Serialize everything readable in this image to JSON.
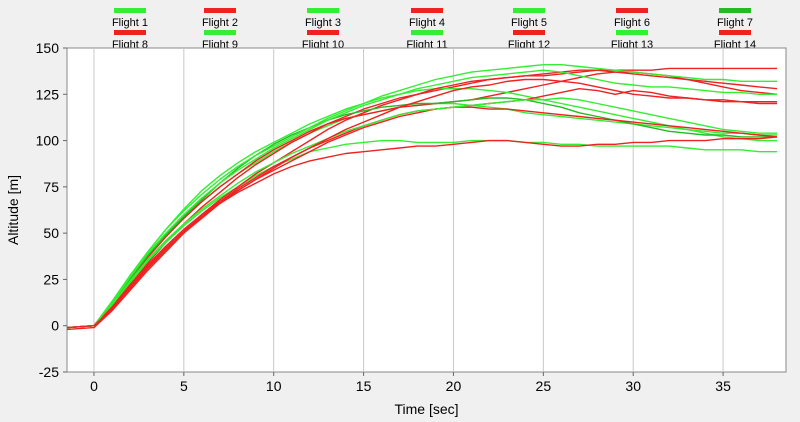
{
  "chart_data": {
    "type": "line",
    "xlabel": "Time [sec]",
    "ylabel": "Altitude [m]",
    "xlim": [
      -1.5,
      38.5
    ],
    "ylim": [
      -25,
      150
    ],
    "x_ticks": [
      0,
      5,
      10,
      15,
      20,
      25,
      30,
      35
    ],
    "x_tick_labels": [
      "0",
      "5",
      "10",
      "15",
      "20",
      "25",
      "30",
      "35"
    ],
    "y_ticks": [
      -25,
      0,
      25,
      50,
      75,
      100,
      125,
      150
    ],
    "y_tick_labels": [
      "-25",
      "0",
      "25",
      "50",
      "75",
      "100",
      "125",
      "150"
    ],
    "grid": "vertical",
    "legend_position": "top",
    "x": [
      -1.5,
      0,
      1,
      2,
      3,
      4,
      5,
      6,
      7,
      8,
      9,
      10,
      11,
      12,
      13,
      14,
      15,
      16,
      17,
      18,
      19,
      20,
      21,
      22,
      23,
      24,
      25,
      26,
      27,
      28,
      29,
      30,
      31,
      32,
      33,
      34,
      35,
      36,
      37,
      38
    ],
    "series": [
      {
        "name": "Flight 1",
        "color": "#33ee33",
        "values": [
          -1,
          0,
          12,
          26,
          38,
          48,
          58,
          67,
          75,
          82,
          88,
          94,
          99,
          104,
          108,
          112,
          114,
          116,
          118,
          119,
          120,
          120,
          119,
          118,
          117,
          115,
          114,
          113,
          112,
          111,
          110,
          109,
          108,
          107,
          106,
          105,
          104,
          104,
          103,
          103
        ]
      },
      {
        "name": "Flight 2",
        "color": "#ee2222",
        "values": [
          -1,
          0,
          10,
          22,
          34,
          45,
          55,
          64,
          72,
          80,
          87,
          93,
          99,
          104,
          109,
          113,
          117,
          120,
          123,
          125,
          127,
          129,
          131,
          133,
          134,
          135,
          135,
          136,
          137,
          138,
          138,
          138,
          138,
          139,
          139,
          139,
          139,
          139,
          139,
          139
        ]
      },
      {
        "name": "Flight 3",
        "color": "#33ee33",
        "values": [
          -1,
          0,
          11,
          23,
          35,
          45,
          54,
          62,
          69,
          75,
          81,
          86,
          90,
          94,
          96,
          98,
          99,
          100,
          100,
          99,
          99,
          99,
          100,
          100,
          100,
          99,
          99,
          98,
          98,
          97,
          97,
          97,
          97,
          97,
          96,
          95,
          95,
          95,
          94,
          94
        ]
      },
      {
        "name": "Flight 4",
        "color": "#ee2222",
        "values": [
          -1,
          0,
          11,
          24,
          37,
          48,
          58,
          67,
          75,
          82,
          89,
          95,
          100,
          105,
          109,
          112,
          114,
          116,
          118,
          119,
          120,
          121,
          122,
          124,
          126,
          128,
          130,
          132,
          134,
          136,
          137,
          137,
          136,
          135,
          133,
          131,
          129,
          127,
          126,
          125
        ]
      },
      {
        "name": "Flight 5",
        "color": "#33ee33",
        "values": [
          -1,
          0,
          13,
          27,
          40,
          52,
          63,
          73,
          81,
          88,
          94,
          99,
          104,
          109,
          113,
          117,
          120,
          123,
          125,
          127,
          128,
          128,
          128,
          127,
          126,
          124,
          122,
          120,
          118,
          116,
          114,
          112,
          110,
          108,
          106,
          104,
          102,
          101,
          100,
          100
        ]
      },
      {
        "name": "Flight 6",
        "color": "#ee2222",
        "values": [
          -1,
          0,
          9,
          21,
          32,
          42,
          51,
          60,
          68,
          75,
          82,
          88,
          94,
          100,
          106,
          111,
          115,
          119,
          122,
          125,
          128,
          130,
          132,
          133,
          134,
          135,
          136,
          137,
          138,
          138,
          137,
          136,
          135,
          134,
          133,
          132,
          131,
          130,
          129,
          128
        ]
      },
      {
        "name": "Flight 7",
        "color": "#22bb22",
        "values": [
          -1,
          0,
          12,
          25,
          38,
          49,
          59,
          68,
          77,
          85,
          92,
          98,
          103,
          107,
          111,
          114,
          116,
          118,
          119,
          120,
          120,
          121,
          122,
          123,
          123,
          122,
          120,
          118,
          115,
          113,
          111,
          109,
          107,
          105,
          104,
          103,
          103,
          102,
          102,
          102
        ]
      },
      {
        "name": "Flight 8",
        "color": "#ee2222",
        "values": [
          -2,
          -1,
          8,
          19,
          30,
          40,
          50,
          59,
          67,
          74,
          80,
          86,
          91,
          96,
          100,
          104,
          108,
          111,
          114,
          116,
          117,
          118,
          118,
          117,
          117,
          116,
          115,
          114,
          113,
          112,
          111,
          110,
          109,
          108,
          107,
          106,
          105,
          104,
          103,
          102
        ]
      },
      {
        "name": "Flight 9",
        "color": "#33ee33",
        "values": [
          -1,
          0,
          13,
          27,
          40,
          52,
          62,
          71,
          79,
          86,
          92,
          97,
          102,
          107,
          112,
          116,
          120,
          124,
          127,
          130,
          133,
          135,
          137,
          138,
          139,
          140,
          141,
          141,
          140,
          139,
          138,
          137,
          136,
          135,
          134,
          133,
          133,
          132,
          132,
          132
        ]
      },
      {
        "name": "Flight 10",
        "color": "#ee2222",
        "values": [
          -1,
          0,
          10,
          22,
          33,
          43,
          52,
          60,
          67,
          73,
          79,
          84,
          89,
          94,
          99,
          103,
          107,
          110,
          113,
          115,
          117,
          118,
          119,
          120,
          121,
          122,
          124,
          126,
          128,
          127,
          125,
          127,
          126,
          124,
          123,
          122,
          121,
          121,
          120,
          120
        ]
      },
      {
        "name": "Flight 11",
        "color": "#33ee33",
        "values": [
          -1,
          0,
          11,
          24,
          36,
          46,
          55,
          63,
          70,
          77,
          83,
          88,
          93,
          97,
          101,
          105,
          108,
          111,
          114,
          116,
          117,
          118,
          119,
          120,
          121,
          122,
          122,
          123,
          122,
          120,
          118,
          116,
          114,
          112,
          110,
          108,
          106,
          105,
          104,
          104
        ]
      },
      {
        "name": "Flight 12",
        "color": "#ee2222",
        "values": [
          -1,
          0,
          10,
          21,
          32,
          42,
          51,
          59,
          66,
          72,
          77,
          82,
          86,
          89,
          91,
          93,
          94,
          95,
          96,
          97,
          97,
          98,
          99,
          100,
          100,
          99,
          98,
          97,
          97,
          98,
          98,
          99,
          99,
          100,
          100,
          100,
          101,
          101,
          101,
          102
        ]
      },
      {
        "name": "Flight 13",
        "color": "#33ee33",
        "values": [
          -1,
          0,
          12,
          26,
          39,
          50,
          60,
          69,
          77,
          84,
          90,
          96,
          101,
          106,
          111,
          115,
          119,
          122,
          125,
          128,
          130,
          132,
          134,
          135,
          136,
          137,
          138,
          137,
          135,
          133,
          131,
          130,
          129,
          129,
          128,
          127,
          126,
          126,
          125,
          125
        ]
      },
      {
        "name": "Flight 14",
        "color": "#ee2222",
        "values": [
          -1,
          0,
          9,
          20,
          31,
          41,
          50,
          58,
          66,
          73,
          79,
          85,
          91,
          96,
          101,
          106,
          110,
          114,
          118,
          121,
          124,
          127,
          129,
          130,
          132,
          133,
          133,
          132,
          131,
          129,
          127,
          125,
          124,
          123,
          123,
          122,
          122,
          121,
          121,
          121
        ]
      }
    ]
  }
}
